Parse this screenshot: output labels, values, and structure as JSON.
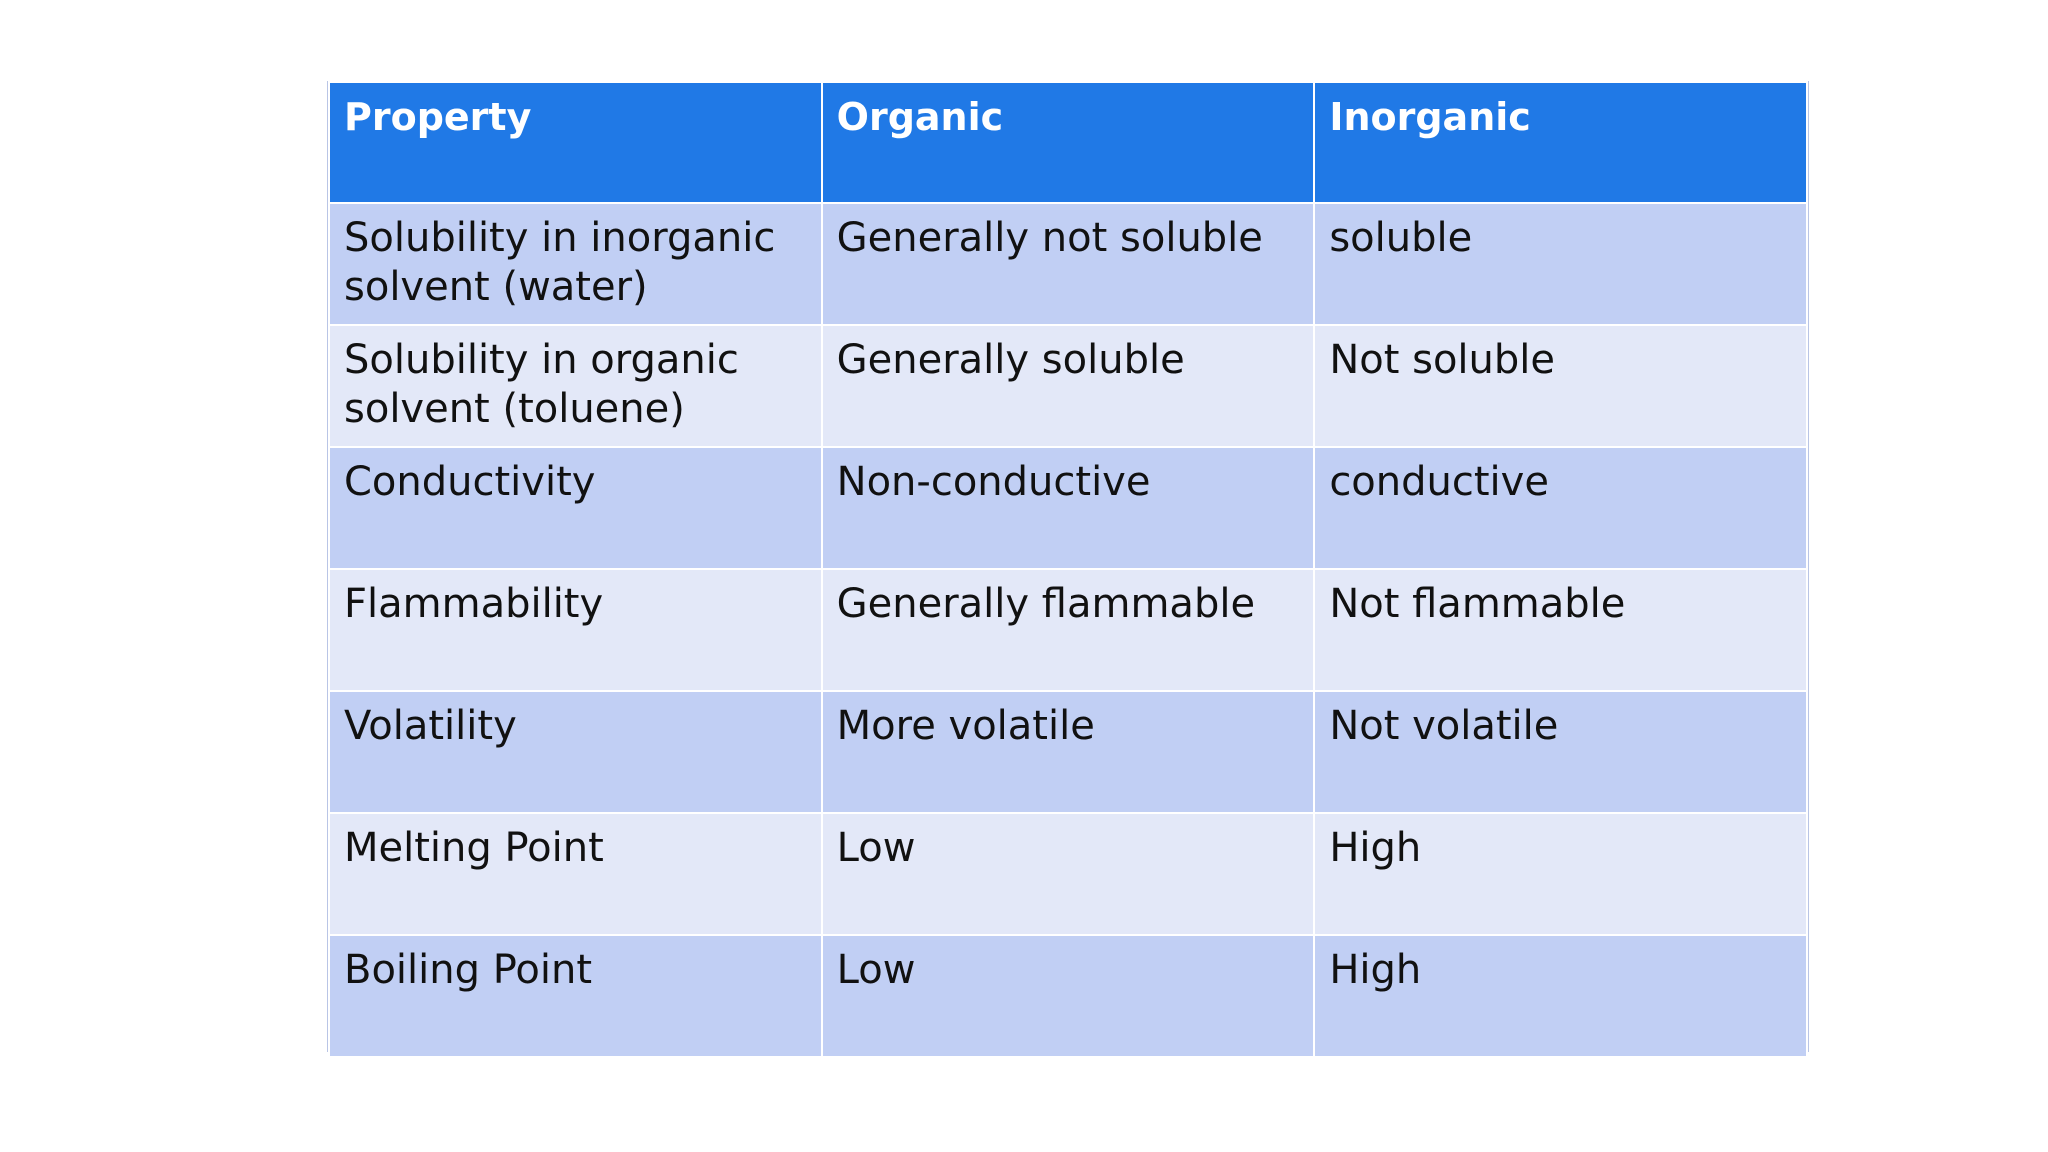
{
  "table": {
    "headers": [
      "Property",
      "Organic",
      "Inorganic"
    ],
    "rows": [
      [
        "Solubility in inorganic solvent (water)",
        "Generally not soluble",
        "soluble"
      ],
      [
        "Solubility in organic solvent (toluene)",
        "Generally soluble",
        "Not soluble"
      ],
      [
        "Conductivity",
        "Non-conductive",
        "conductive"
      ],
      [
        "Flammability",
        "Generally flammable",
        "Not flammable"
      ],
      [
        "Volatility",
        "More volatile",
        "Not volatile"
      ],
      [
        "Melting Point",
        "Low",
        "High"
      ],
      [
        "Boiling Point",
        "Low",
        "High"
      ]
    ]
  },
  "colors": {
    "header_bg": "#2079e6",
    "row_dark": "#c1cff4",
    "row_light": "#e3e8f8",
    "text": "#111111",
    "header_text": "#ffffff"
  }
}
